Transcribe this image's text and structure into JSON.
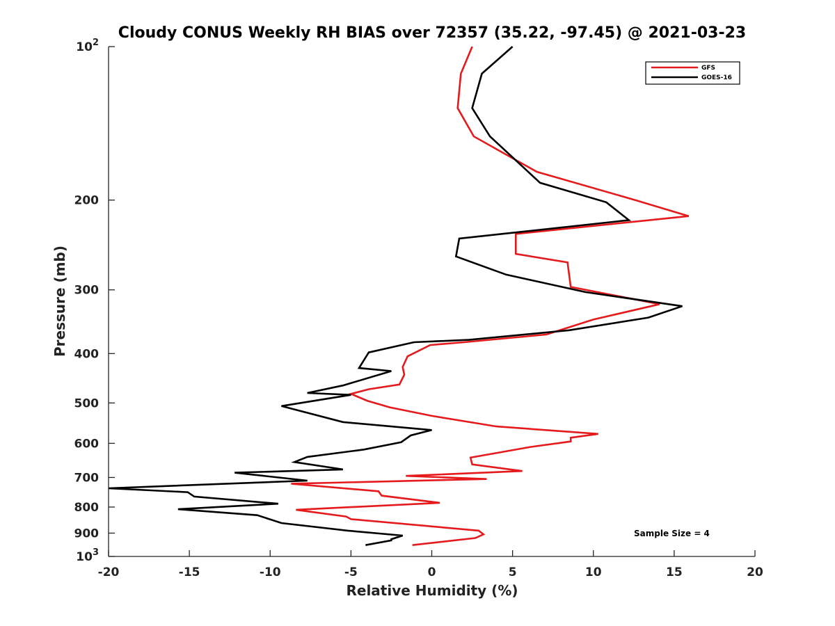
{
  "chart_data": {
    "type": "line",
    "title": "Cloudy CONUS Weekly RH BIAS over 72357 (35.22, -97.45) @ 2021-03-23",
    "xlabel": "Relative Humidity (%)",
    "ylabel": "Pressure (mb)",
    "xlim": [
      -20,
      20
    ],
    "ylim": [
      100,
      1000
    ],
    "y_scale": "log",
    "y_reversed": true,
    "x_ticks": [
      -20,
      -15,
      -10,
      -5,
      0,
      5,
      10,
      15,
      20
    ],
    "x_tick_labels": [
      "-20",
      "-15",
      "-10",
      "-5",
      "0",
      "5",
      "10",
      "15",
      "20"
    ],
    "y_ticks": [
      100,
      200,
      300,
      400,
      500,
      600,
      700,
      800,
      900,
      1000
    ],
    "y_tick_labels": [
      {
        "base": "10",
        "exp": "2"
      },
      {
        "base": "200",
        "exp": ""
      },
      {
        "base": "300",
        "exp": ""
      },
      {
        "base": "400",
        "exp": ""
      },
      {
        "base": "500",
        "exp": ""
      },
      {
        "base": "600",
        "exp": ""
      },
      {
        "base": "700",
        "exp": ""
      },
      {
        "base": "800",
        "exp": ""
      },
      {
        "base": "900",
        "exp": ""
      },
      {
        "base": "10",
        "exp": "3"
      }
    ],
    "grid": false,
    "legend_position": "top-right",
    "annotation": "Sample Size = 4",
    "series": [
      {
        "name": "GFS",
        "color": "#e41a1c",
        "x": [
          2.5,
          1.8,
          1.6,
          2.6,
          6.5,
          12.6,
          15.9,
          5.2,
          5.2,
          8.4,
          8.6,
          14.1,
          10.0,
          7.1,
          2.0,
          -0.1,
          -1.5,
          -1.8,
          -1.7,
          -2.0,
          -3.9,
          -5.0,
          -4.0,
          -2.6,
          0.0,
          4.0,
          10.3,
          8.6,
          8.6,
          6.1,
          2.4,
          2.5,
          5.6,
          -1.6,
          3.4,
          -8.7,
          -3.3,
          -3.1,
          0.5,
          -8.4,
          -5.3,
          -5.0,
          2.9,
          3.2,
          2.7,
          -1.2
        ],
        "y": [
          100,
          113,
          132,
          150,
          176,
          200,
          215,
          233,
          255,
          265,
          296,
          320,
          343,
          367,
          380,
          385,
          405,
          425,
          440,
          460,
          470,
          480,
          495,
          510,
          530,
          556,
          575,
          585,
          595,
          610,
          640,
          660,
          680,
          695,
          705,
          720,
          745,
          760,
          785,
          810,
          835,
          845,
          890,
          905,
          920,
          950
        ]
      },
      {
        "name": "GOES-16",
        "color": "#000000",
        "x": [
          5.0,
          3.1,
          2.5,
          3.6,
          6.7,
          10.8,
          12.2,
          1.7,
          1.5,
          4.6,
          9.5,
          15.5,
          13.4,
          8.5,
          2.3,
          -1.1,
          -3.9,
          -4.5,
          -2.5,
          -5.5,
          -7.7,
          -5.0,
          -9.3,
          -5.5,
          0.0,
          -1.3,
          -1.9,
          -4.2,
          -7.7,
          -8.5,
          -5.5,
          -12.2,
          -7.7,
          -20.0,
          -15.1,
          -14.7,
          -9.5,
          -15.7,
          -10.8,
          -9.3,
          -5.2,
          -1.8,
          -2.5,
          -2.5,
          -4.1
        ],
        "y": [
          100,
          113,
          132,
          150,
          185,
          202,
          219,
          238,
          258,
          280,
          303,
          323,
          340,
          360,
          376,
          380,
          398,
          427,
          433,
          462,
          478,
          482,
          507,
          545,
          565,
          579,
          597,
          617,
          638,
          653,
          675,
          685,
          710,
          735,
          748,
          763,
          788,
          808,
          830,
          860,
          890,
          910,
          925,
          930,
          950
        ]
      }
    ]
  }
}
